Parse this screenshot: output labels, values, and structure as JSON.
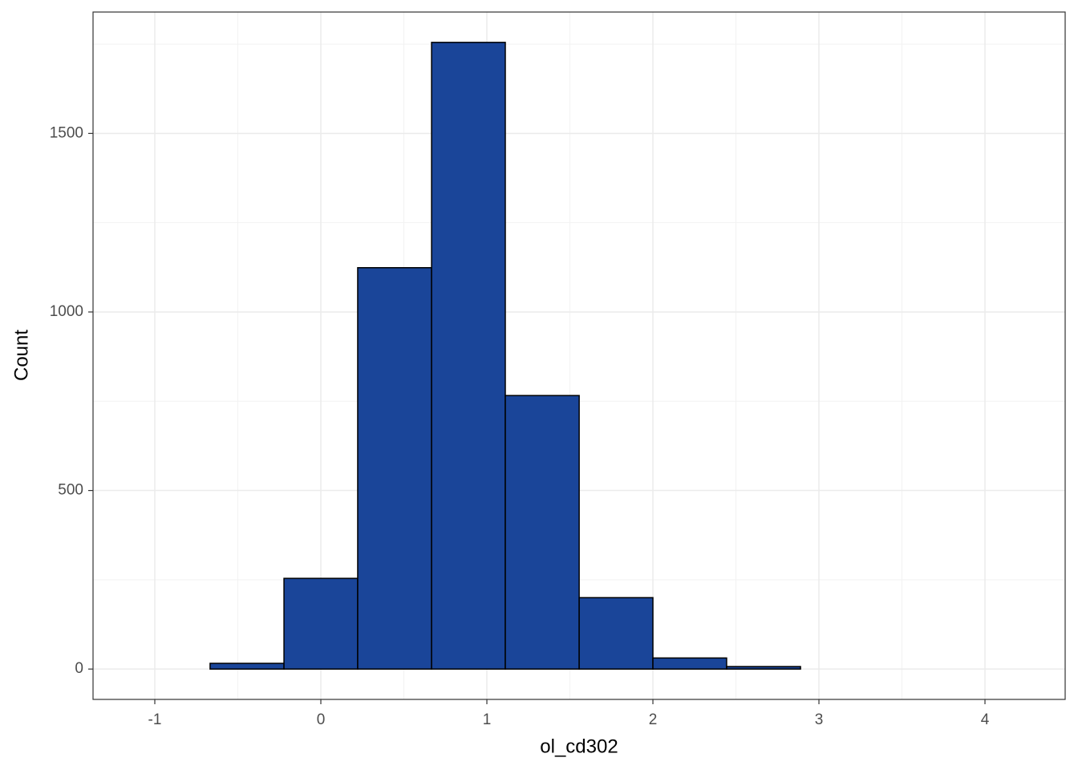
{
  "chart_data": {
    "type": "histogram",
    "x_label": "ol_cd302",
    "y_label": "Count",
    "bins": [
      -1.106,
      -0.667,
      -0.222,
      0.222,
      0.667,
      1.111,
      1.556,
      2.0,
      2.444,
      2.889,
      3.333,
      3.778,
      4.222
    ],
    "counts": [
      0,
      16,
      254,
      1124,
      1755,
      766,
      200,
      31,
      7,
      0,
      0,
      0
    ],
    "color": "#1a4599",
    "xlim": [
      -1.372,
      4.483
    ],
    "ylim": [
      -85,
      1840
    ],
    "xticks": [
      -1,
      0,
      1,
      2,
      3,
      4
    ],
    "yticks": [
      0,
      500,
      1000,
      1500
    ],
    "grid": true
  }
}
